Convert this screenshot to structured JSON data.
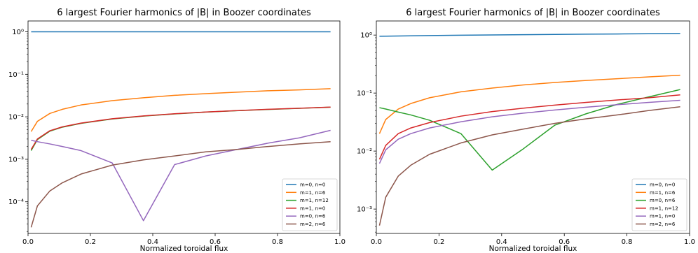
{
  "chart_data": [
    {
      "type": "line",
      "title": "6 largest Fourier harmonics of |B| in Boozer coordinates",
      "xlabel": "Normalized toroidal flux",
      "ylabel": "",
      "xscale": "linear",
      "yscale": "log",
      "xlim": [
        0.0,
        1.0
      ],
      "ylim": [
        1.8e-05,
        1.8
      ],
      "xticks": [
        "0.0",
        "0.2",
        "0.4",
        "0.6",
        "0.8",
        "1.0"
      ],
      "yticks": [
        "10⁻⁴",
        "10⁻³",
        "10⁻²",
        "10⁻¹",
        "10⁰"
      ],
      "legend_position": "lower-right",
      "x": [
        0.01,
        0.03,
        0.07,
        0.11,
        0.17,
        0.27,
        0.37,
        0.47,
        0.57,
        0.67,
        0.77,
        0.87,
        0.97
      ],
      "series": [
        {
          "name": "m=0, n=0",
          "color": "#1f77b4",
          "values": [
            1.0,
            1.0,
            1.0,
            1.0,
            1.0,
            1.0,
            1.0,
            1.0,
            1.0,
            1.0,
            1.0,
            1.0,
            1.0
          ]
        },
        {
          "name": "m=1, n=6",
          "color": "#ff7f0e",
          "values": [
            0.0045,
            0.0078,
            0.012,
            0.015,
            0.019,
            0.024,
            0.028,
            0.032,
            0.035,
            0.038,
            0.041,
            0.043,
            0.046
          ]
        },
        {
          "name": "m=1, n=12",
          "color": "#2ca02c",
          "values": [
            0.0016,
            0.0029,
            0.0046,
            0.0057,
            0.007,
            0.0089,
            0.0104,
            0.0117,
            0.0129,
            0.0139,
            0.0149,
            0.0158,
            0.0168
          ]
        },
        {
          "name": "m=1, n=0",
          "color": "#d62728",
          "values": [
            0.0017,
            0.003,
            0.0047,
            0.0058,
            0.0071,
            0.009,
            0.0105,
            0.0118,
            0.013,
            0.014,
            0.015,
            0.0159,
            0.0169
          ]
        },
        {
          "name": "m=0, n=6",
          "color": "#9467bd",
          "values": [
            0.0028,
            0.0026,
            0.0023,
            0.002,
            0.0016,
            0.00082,
            3.6e-05,
            0.00075,
            0.0012,
            0.0017,
            0.0024,
            0.0032,
            0.0048
          ]
        },
        {
          "name": "m=2, n=6",
          "color": "#8c564b",
          "values": [
            2.5e-05,
            8e-05,
            0.00018,
            0.00028,
            0.00045,
            0.00073,
            0.00097,
            0.0012,
            0.0015,
            0.0017,
            0.002,
            0.0023,
            0.0026
          ]
        }
      ]
    },
    {
      "type": "line",
      "title": "6 largest Fourier harmonics of |B| in Boozer coordinates",
      "xlabel": "Normalized toroidal flux",
      "ylabel": "",
      "xscale": "linear",
      "yscale": "log",
      "xlim": [
        0.0,
        1.0
      ],
      "ylim": [
        0.00038,
        1.75
      ],
      "xticks": [
        "0.0",
        "0.2",
        "0.4",
        "0.6",
        "0.8",
        "1.0"
      ],
      "yticks": [
        "10⁻³",
        "10⁻²",
        "10⁻¹",
        "10⁰"
      ],
      "legend_position": "lower-right",
      "x": [
        0.01,
        0.03,
        0.07,
        0.11,
        0.17,
        0.27,
        0.37,
        0.47,
        0.57,
        0.67,
        0.77,
        0.87,
        0.97
      ],
      "series": [
        {
          "name": "m=0, n=0",
          "color": "#1f77b4",
          "values": [
            0.955,
            0.958,
            0.965,
            0.972,
            0.98,
            0.995,
            1.005,
            1.015,
            1.025,
            1.035,
            1.045,
            1.055,
            1.065
          ]
        },
        {
          "name": "m=1, n=6",
          "color": "#ff7f0e",
          "values": [
            0.02,
            0.035,
            0.053,
            0.066,
            0.083,
            0.105,
            0.122,
            0.138,
            0.152,
            0.165,
            0.177,
            0.19,
            0.203
          ]
        },
        {
          "name": "m=0, n=6",
          "color": "#2ca02c",
          "values": [
            0.056,
            0.053,
            0.047,
            0.042,
            0.034,
            0.02,
            0.0047,
            0.011,
            0.028,
            0.044,
            0.064,
            0.086,
            0.115
          ]
        },
        {
          "name": "m=1, n=12",
          "color": "#d62728",
          "values": [
            0.0072,
            0.0125,
            0.02,
            0.025,
            0.031,
            0.04,
            0.048,
            0.055,
            0.062,
            0.069,
            0.076,
            0.083,
            0.093
          ]
        },
        {
          "name": "m=1, n=0",
          "color": "#9467bd",
          "values": [
            0.0061,
            0.0105,
            0.016,
            0.02,
            0.025,
            0.032,
            0.039,
            0.045,
            0.051,
            0.057,
            0.063,
            0.069,
            0.075
          ]
        },
        {
          "name": "m=2, n=6",
          "color": "#8c564b",
          "values": [
            0.00052,
            0.0016,
            0.0037,
            0.0057,
            0.0088,
            0.0138,
            0.019,
            0.024,
            0.03,
            0.036,
            0.042,
            0.05,
            0.058
          ]
        }
      ]
    }
  ]
}
